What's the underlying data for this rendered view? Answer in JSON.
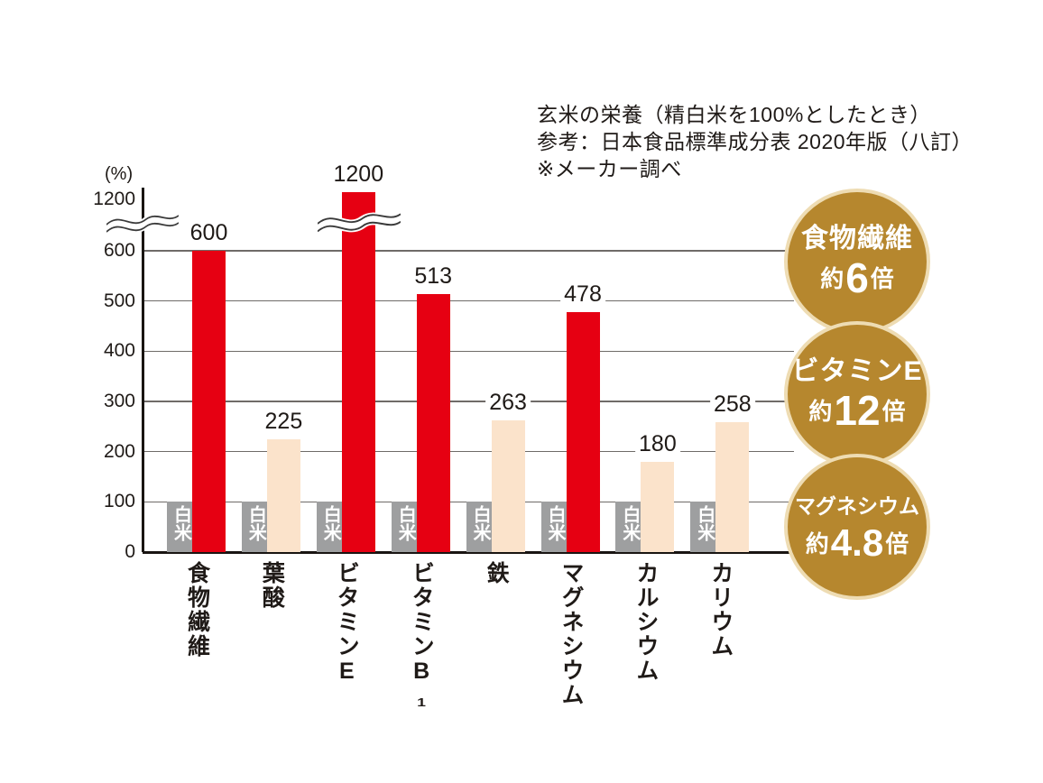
{
  "note": {
    "line1": "玄米の栄養（精白米を100%としたとき）",
    "line2": "参考：日本食品標準成分表 2020年版（八訂）",
    "line3": "※メーカー調べ"
  },
  "chart_data": {
    "type": "bar",
    "title": "玄米の栄養（精白米を100%としたとき）",
    "source": "参考：日本食品標準成分表 2020年版（八訂） ※メーカー調べ",
    "ylabel": "(%)",
    "y_ticks": [
      0,
      100,
      200,
      300,
      400,
      500,
      600,
      1200
    ],
    "axis_break_between": [
      600,
      1200
    ],
    "grid": true,
    "legend_position": "none",
    "categories": [
      "食物繊維",
      "葉酸",
      "ビタミンE",
      "ビタミンB₁",
      "鉄",
      "マグネシウム",
      "カルシウム",
      "カリウム"
    ],
    "series": [
      {
        "name": "白米",
        "values": [
          100,
          100,
          100,
          100,
          100,
          100,
          100,
          100
        ]
      },
      {
        "name": "玄米",
        "values": [
          600,
          225,
          1200,
          513,
          263,
          478,
          180,
          258
        ]
      }
    ],
    "emphasis": [
      true,
      false,
      true,
      true,
      false,
      true,
      false,
      false
    ]
  },
  "badges": [
    {
      "title": "食物繊維",
      "prefix": "約",
      "number": "6",
      "suffix": "倍"
    },
    {
      "title": "ビタミンE",
      "prefix": "約",
      "number": "12",
      "suffix": "倍"
    },
    {
      "title": "マグネシウム",
      "prefix": "約",
      "number": "4.8",
      "suffix": "倍"
    }
  ],
  "colors": {
    "emphasis_red": "#e60012",
    "light_peach": "#fbe3cb",
    "white_rice_gray": "#9e9fa0",
    "badge_gold": "#b6872e",
    "badge_border": "#eedcb3",
    "grid": "#6f6b68",
    "axis": "#191512",
    "text": "#1f1a17"
  }
}
